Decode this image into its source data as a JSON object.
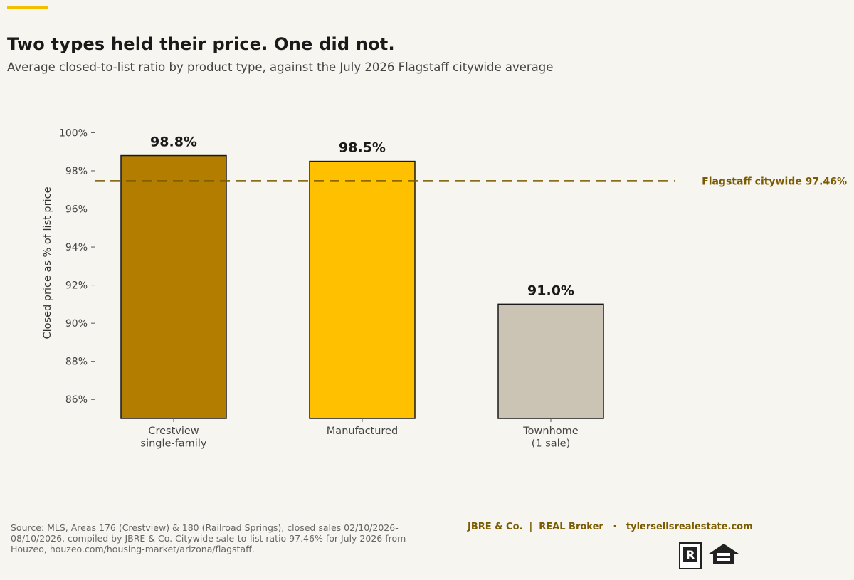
{
  "header": {
    "title": "Two types held their price. One did not.",
    "subtitle": "Average closed-to-list ratio by product type, against the July 2026 Flagstaff citywide average"
  },
  "chart_data": {
    "type": "bar",
    "categories": [
      [
        "Crestview",
        "single-family"
      ],
      [
        "Manufactured"
      ],
      [
        "Townhome",
        "(1 sale)"
      ]
    ],
    "values": [
      98.8,
      98.5,
      91.0
    ],
    "value_labels": [
      "98.8%",
      "98.5%",
      "91.0%"
    ],
    "bar_colors": [
      "#b37d00",
      "#ffc000",
      "#cbc4b4"
    ],
    "ylabel": "Closed price as % of list price",
    "ylim": [
      85,
      100.8
    ],
    "yticks": [
      86,
      88,
      90,
      92,
      94,
      96,
      98,
      100
    ],
    "ytick_labels": [
      "86%",
      "88%",
      "90%",
      "92%",
      "94%",
      "96%",
      "98%",
      "100%"
    ],
    "reference_line": {
      "value": 97.46,
      "label": "Flagstaff citywide 97.46%",
      "color": "#7a5b00"
    },
    "grid": false
  },
  "footer": {
    "source": "Source: MLS, Areas 176 (Crestview) & 180 (Railroad Springs), closed sales 02/10/2026-08/10/2026, compiled by JBRE & Co. Citywide sale-to-list ratio 97.46% for July 2026 from Houzeo, houzeo.com/housing-market/arizona/flagstaff.",
    "brand": "JBRE & Co.  |  REAL Broker   ·   tylersellsrealestate.com"
  },
  "logos": [
    "realtor-logo",
    "equal-housing-opportunity-logo"
  ],
  "colors": {
    "accent": "#f2be00",
    "background": "#f6f5f0",
    "brand_text": "#7a5b00"
  }
}
